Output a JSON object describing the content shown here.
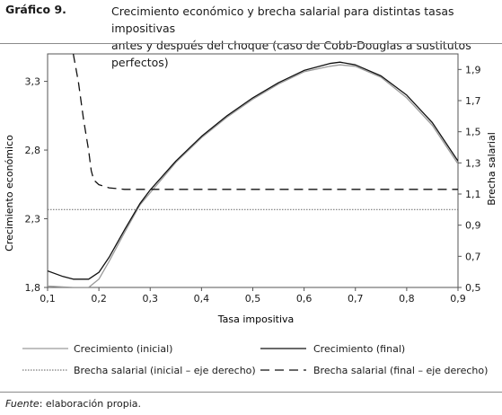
{
  "figure": {
    "label": "Gráfico 9.",
    "title_line1": "Crecimiento económico y brecha salarial para distintas tasas impositivas",
    "title_line2": "antes y después del choque (caso de Cobb-Douglas a sustitutos perfectos)",
    "source_label": "Fuente",
    "source_text": ": elaboración propia."
  },
  "chart_data": {
    "type": "line",
    "xlabel": "Tasa impositiva",
    "ylabel": "Crecimiento económico",
    "y2label": "Brecha salarial",
    "xlim": [
      0.1,
      0.9
    ],
    "ylim": [
      1.8,
      3.5
    ],
    "y2lim": [
      0.5,
      2.0
    ],
    "xticks": [
      "0,1",
      "0,2",
      "0,3",
      "0,4",
      "0,5",
      "0,6",
      "0,7",
      "0,8",
      "0,9"
    ],
    "xtick_values": [
      0.1,
      0.2,
      0.3,
      0.4,
      0.5,
      0.6,
      0.7,
      0.8,
      0.9
    ],
    "yticks": [
      "1,8",
      "2,3",
      "2,8",
      "3,3"
    ],
    "ytick_values": [
      1.8,
      2.3,
      2.8,
      3.3
    ],
    "y2ticks": [
      "0,5",
      "0,7",
      "0,9",
      "1,1",
      "1,3",
      "1,5",
      "1,7",
      "1,9"
    ],
    "y2tick_values": [
      0.5,
      0.7,
      0.9,
      1.1,
      1.3,
      1.5,
      1.7,
      1.9
    ],
    "grid": false,
    "legend_position": "bottom",
    "series": [
      {
        "name": "Crecimiento (inicial)",
        "axis": "left",
        "color": "#9a9a9a",
        "dash": "solid",
        "x": [
          0.1,
          0.15,
          0.18,
          0.2,
          0.22,
          0.25,
          0.28,
          0.3,
          0.35,
          0.4,
          0.45,
          0.5,
          0.55,
          0.6,
          0.65,
          0.67,
          0.7,
          0.75,
          0.8,
          0.85,
          0.9
        ],
        "y": [
          1.81,
          1.8,
          1.8,
          1.86,
          1.99,
          2.2,
          2.4,
          2.49,
          2.71,
          2.89,
          3.04,
          3.17,
          3.28,
          3.37,
          3.41,
          3.42,
          3.41,
          3.33,
          3.18,
          2.98,
          2.7
        ]
      },
      {
        "name": "Crecimiento (final)",
        "axis": "left",
        "color": "#111111",
        "dash": "solid",
        "x": [
          0.1,
          0.13,
          0.15,
          0.18,
          0.2,
          0.22,
          0.25,
          0.28,
          0.3,
          0.35,
          0.4,
          0.45,
          0.5,
          0.55,
          0.6,
          0.65,
          0.67,
          0.7,
          0.75,
          0.8,
          0.85,
          0.9
        ],
        "y": [
          1.92,
          1.88,
          1.86,
          1.86,
          1.91,
          2.02,
          2.22,
          2.41,
          2.51,
          2.72,
          2.9,
          3.05,
          3.18,
          3.29,
          3.38,
          3.43,
          3.44,
          3.42,
          3.34,
          3.2,
          3.0,
          2.72
        ]
      },
      {
        "name": "Brecha salarial (inicial – eje derecho)",
        "axis": "right",
        "color": "#7a7a7a",
        "dash": "dotted",
        "x": [
          0.1,
          0.2,
          0.3,
          0.4,
          0.5,
          0.6,
          0.7,
          0.8,
          0.9
        ],
        "y": [
          1.0,
          1.0,
          1.0,
          1.0,
          1.0,
          1.0,
          1.0,
          1.0,
          1.0
        ]
      },
      {
        "name": "Brecha salarial (final – eje derecho)",
        "axis": "right",
        "color": "#111111",
        "dash": "dashed",
        "x": [
          0.15,
          0.16,
          0.17,
          0.18,
          0.185,
          0.19,
          0.2,
          0.22,
          0.25,
          0.3,
          0.4,
          0.5,
          0.6,
          0.7,
          0.8,
          0.9
        ],
        "y": [
          2.0,
          1.82,
          1.58,
          1.38,
          1.25,
          1.19,
          1.16,
          1.14,
          1.13,
          1.13,
          1.13,
          1.13,
          1.13,
          1.13,
          1.13,
          1.13
        ]
      }
    ]
  }
}
